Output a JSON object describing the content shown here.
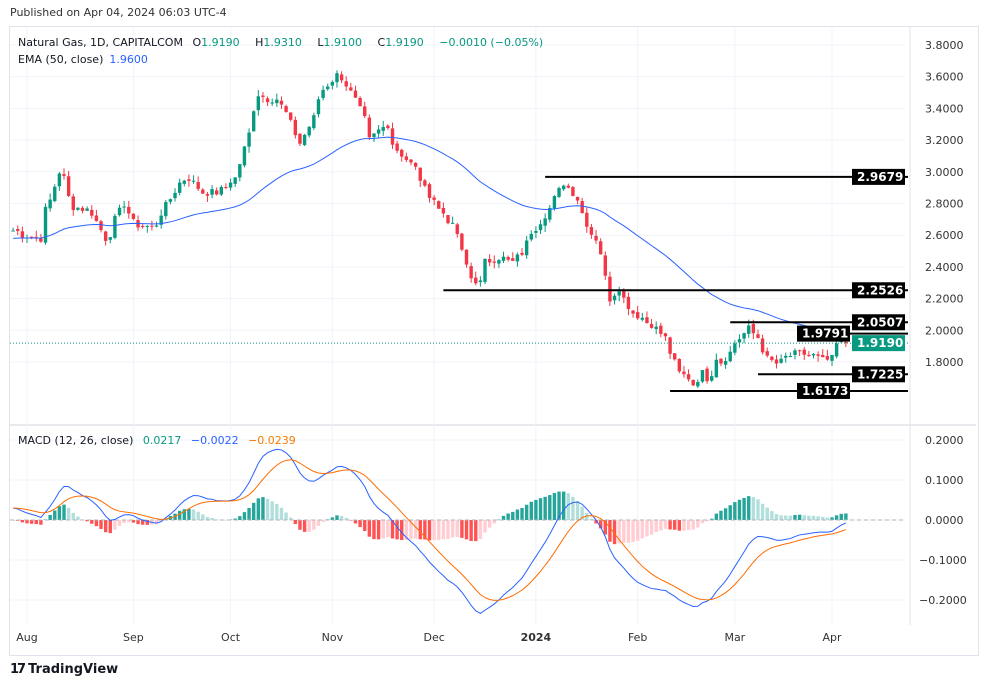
{
  "published": "Published on Apr 04, 2024 06:03 UTC-4",
  "legend": {
    "symbol": "Natural Gas, 1D, CAPITALCOM",
    "o_label": "O",
    "o": "1.9190",
    "h_label": "H",
    "h": "1.9310",
    "l_label": "L",
    "l": "1.9100",
    "c_label": "C",
    "c": "1.9190",
    "change": "−0.0010 (−0.05%)",
    "ema_label": "EMA (50, close)",
    "ema": "1.9600",
    "macd_label": "MACD (12, 26, close)",
    "macd_hist": "0.0217",
    "macd_line": "−0.0022",
    "macd_signal": "−0.0239"
  },
  "brand": "TradingView",
  "colors": {
    "up": "#089981",
    "down": "#f23645",
    "ema": "#2962ff",
    "macd": "#2962ff",
    "signal": "#ff6d00",
    "hist_up": "#26a69a",
    "hist_up_light": "#b2dfdb",
    "hist_down": "#ff5252",
    "hist_down_light": "#ffcdd2",
    "last_price": "#089981"
  },
  "chart_data": [
    {
      "type": "candlestick",
      "panel": "price",
      "yticks": [
        "3.8000",
        "3.6000",
        "3.4000",
        "3.2000",
        "3.0000",
        "2.8000",
        "2.6000",
        "2.4000",
        "2.2000",
        "2.0000",
        "1.8000"
      ],
      "ylim": [
        1.55,
        3.85
      ],
      "xticks": [
        "Aug",
        "Sep",
        "Oct",
        "Nov",
        "Dec",
        "2024",
        "Feb",
        "Mar",
        "Apr"
      ],
      "close_path": [
        [
          "2023-07-27",
          2.63
        ],
        [
          "2023-08-04",
          2.58
        ],
        [
          "2023-08-08",
          2.82
        ],
        [
          "2023-08-10",
          3.0
        ],
        [
          "2023-08-14",
          2.84
        ],
        [
          "2023-08-15",
          2.78
        ],
        [
          "2023-08-21",
          2.74
        ],
        [
          "2023-08-24",
          2.58
        ],
        [
          "2023-08-28",
          2.7
        ],
        [
          "2023-08-30",
          2.8
        ],
        [
          "2023-09-01",
          2.68
        ],
        [
          "2023-09-07",
          2.65
        ],
        [
          "2023-09-11",
          2.74
        ],
        [
          "2023-09-13",
          2.83
        ],
        [
          "2023-09-15",
          2.93
        ],
        [
          "2023-09-19",
          2.96
        ],
        [
          "2023-09-22",
          2.87
        ],
        [
          "2023-09-27",
          2.87
        ],
        [
          "2023-09-29",
          2.9
        ],
        [
          "2023-10-03",
          2.96
        ],
        [
          "2023-10-06",
          3.24
        ],
        [
          "2023-10-09",
          3.4
        ],
        [
          "2023-10-10",
          3.49
        ],
        [
          "2023-10-12",
          3.46
        ],
        [
          "2023-10-16",
          3.46
        ],
        [
          "2023-10-18",
          3.37
        ],
        [
          "2023-10-20",
          3.24
        ],
        [
          "2023-10-23",
          3.18
        ],
        [
          "2023-10-26",
          3.34
        ],
        [
          "2023-10-27",
          3.46
        ],
        [
          "2023-10-30",
          3.52
        ],
        [
          "2023-11-02",
          3.61
        ],
        [
          "2023-11-06",
          3.55
        ],
        [
          "2023-11-08",
          3.45
        ],
        [
          "2023-11-10",
          3.33
        ],
        [
          "2023-11-13",
          3.2
        ],
        [
          "2023-11-15",
          3.26
        ],
        [
          "2023-11-17",
          3.3
        ],
        [
          "2023-11-21",
          3.14
        ],
        [
          "2023-11-24",
          3.05
        ],
        [
          "2023-11-27",
          3.02
        ],
        [
          "2023-11-29",
          2.89
        ],
        [
          "2023-12-01",
          2.83
        ],
        [
          "2023-12-05",
          2.74
        ],
        [
          "2023-12-08",
          2.61
        ],
        [
          "2023-12-11",
          2.49
        ],
        [
          "2023-12-13",
          2.33
        ],
        [
          "2023-12-15",
          2.3
        ],
        [
          "2023-12-18",
          2.43
        ],
        [
          "2023-12-21",
          2.46
        ],
        [
          "2023-12-26",
          2.43
        ],
        [
          "2023-12-28",
          2.49
        ],
        [
          "2023-12-29",
          2.55
        ],
        [
          "2024-01-02",
          2.65
        ],
        [
          "2024-01-05",
          2.77
        ],
        [
          "2024-01-08",
          2.83
        ],
        [
          "2024-01-10",
          2.93
        ],
        [
          "2024-01-12",
          2.87
        ],
        [
          "2024-01-15",
          2.83
        ],
        [
          "2024-01-16",
          2.74
        ],
        [
          "2024-01-18",
          2.61
        ],
        [
          "2024-01-22",
          2.49
        ],
        [
          "2024-01-23",
          2.33
        ],
        [
          "2024-01-24",
          2.2
        ],
        [
          "2024-01-26",
          2.27
        ],
        [
          "2024-01-29",
          2.2
        ],
        [
          "2024-01-31",
          2.11
        ],
        [
          "2024-02-02",
          2.08
        ],
        [
          "2024-02-06",
          2.04
        ],
        [
          "2024-02-08",
          1.98
        ],
        [
          "2024-02-12",
          1.86
        ],
        [
          "2024-02-14",
          1.73
        ],
        [
          "2024-02-19",
          1.66
        ],
        [
          "2024-02-21",
          1.73
        ],
        [
          "2024-02-22",
          1.7
        ],
        [
          "2024-02-26",
          1.83
        ],
        [
          "2024-02-27",
          1.8
        ],
        [
          "2024-02-29",
          1.86
        ],
        [
          "2024-03-01",
          1.92
        ],
        [
          "2024-03-04",
          1.95
        ],
        [
          "2024-03-06",
          2.01
        ],
        [
          "2024-03-07",
          1.98
        ],
        [
          "2024-03-11",
          1.88
        ],
        [
          "2024-03-12",
          1.82
        ],
        [
          "2024-03-14",
          1.79
        ],
        [
          "2024-03-18",
          1.83
        ],
        [
          "2024-03-20",
          1.85
        ],
        [
          "2024-03-22",
          1.85
        ],
        [
          "2024-03-26",
          1.84
        ],
        [
          "2024-03-28",
          1.81
        ],
        [
          "2024-04-01",
          1.82
        ],
        [
          "2024-04-02",
          1.91
        ],
        [
          "2024-04-04",
          1.919
        ]
      ],
      "last_price": "1.9190",
      "levels": [
        {
          "value": 2.9679,
          "label": "2.9679",
          "from": "2024-01-04"
        },
        {
          "value": 2.2526,
          "label": "2.2526",
          "from": "2023-12-05"
        },
        {
          "value": 2.0507,
          "label": "2.0507",
          "from": "2024-02-29"
        },
        {
          "value": 1.9791,
          "label": "1.9791",
          "from": "2024-03-26"
        },
        {
          "value": 1.7225,
          "label": "1.7225",
          "from": "2024-03-08"
        },
        {
          "value": 1.6173,
          "label": "1.6173",
          "from": "2024-02-12"
        }
      ],
      "ema_period": 50
    },
    {
      "type": "macd",
      "panel": "macd",
      "yticks": [
        "0.2000",
        "0.1000",
        "0.0000",
        "-0.1000",
        "-0.2000"
      ],
      "ylim": [
        -0.25,
        0.23
      ],
      "params": [
        12,
        26,
        9
      ]
    }
  ]
}
